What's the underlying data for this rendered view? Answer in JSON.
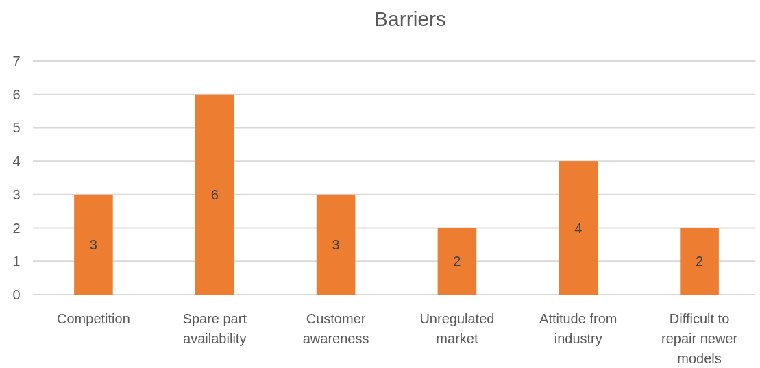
{
  "chart_data": {
    "type": "bar",
    "title": "Barriers",
    "categories": [
      "Competition",
      "Spare part availability",
      "Customer awareness",
      "Unregulated market",
      "Attitude from industry",
      "Difficult to repair newer models"
    ],
    "values": [
      3,
      6,
      3,
      2,
      4,
      2
    ],
    "color": "#ed7d31",
    "ylim": [
      0,
      7
    ],
    "yticks": [
      0,
      1,
      2,
      3,
      4,
      5,
      6,
      7
    ],
    "grid": "y",
    "data_labels": true
  }
}
